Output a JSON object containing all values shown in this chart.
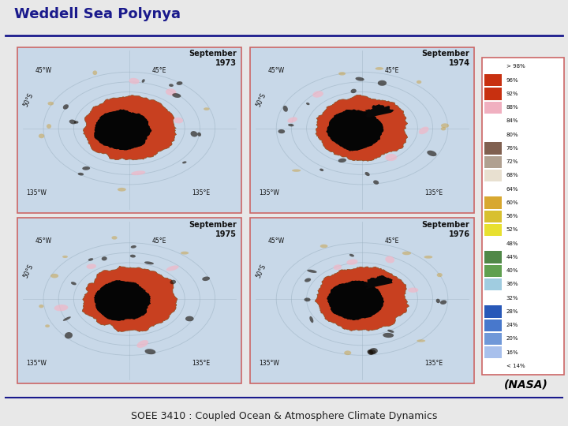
{
  "title": "Weddell Sea Polynya",
  "subtitle": "SOEE 3410 : Coupled Ocean & Atmosphere Climate Dynamics",
  "nasa_credit": "(NASA)",
  "bg_color": "#e8e8e8",
  "title_color": "#1a1a8c",
  "title_fontsize": 13,
  "subtitle_fontsize": 9,
  "panel_labels": [
    "September\n1973",
    "September\n1974",
    "September\n1975",
    "September\n1976"
  ],
  "panel_edge_color": "#cc6666",
  "panel_bg_color": "#c8d8e8",
  "grid_color": "#9ab0c0",
  "colorbar_labels": [
    "> 98%",
    "96%",
    "92%",
    "88%",
    "84%",
    "80%",
    "76%",
    "72%",
    "68%",
    "64%",
    "60%",
    "56%",
    "52%",
    "48%",
    "44%",
    "40%",
    "36%",
    "32%",
    "28%",
    "24%",
    "20%",
    "16%",
    "< 14%"
  ],
  "colorbar_swatches": [
    null,
    "#c83010",
    "#c83010",
    "#f0b0c0",
    null,
    null,
    "#806050",
    "#b0a090",
    "#e8e0d0",
    null,
    "#d8a830",
    "#d8c030",
    "#e8e030",
    null,
    "#508848",
    "#60a050",
    "#a0cce0",
    null,
    "#2858b8",
    "#4878cc",
    "#7098d8",
    "#a8c0ec",
    null
  ],
  "colorbar_bg": "#ffffff",
  "colorbar_border": "#cc6666"
}
